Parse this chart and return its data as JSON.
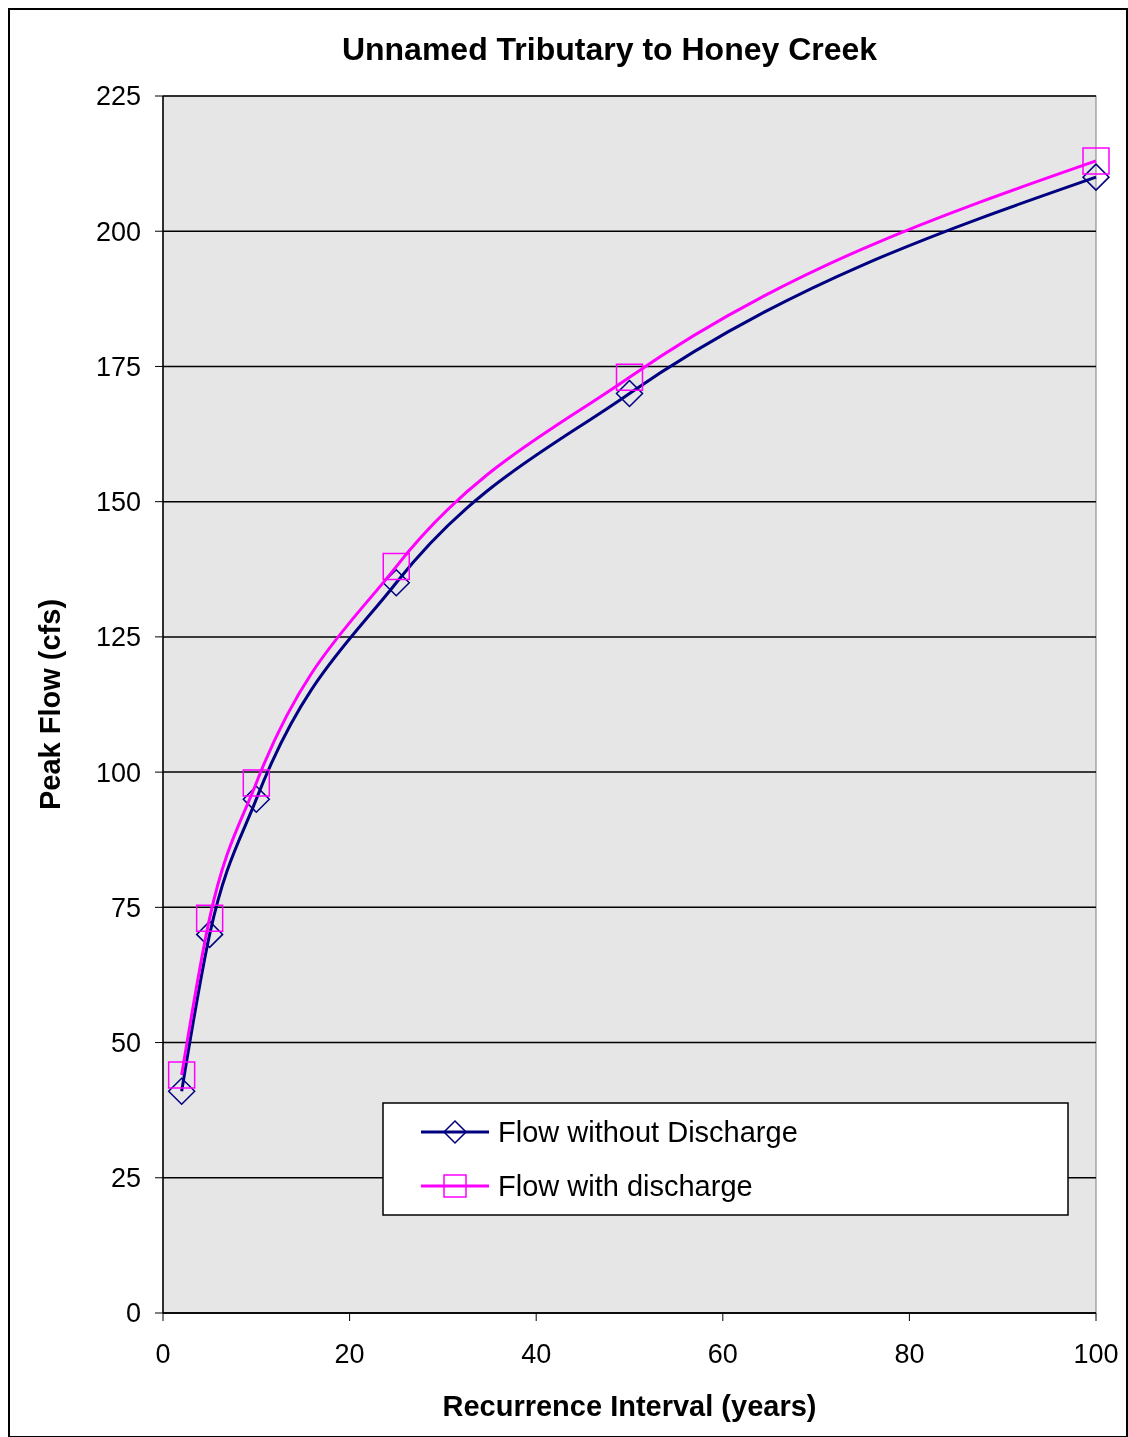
{
  "chart_data": {
    "type": "line",
    "title": "Unnamed Tributary to Honey Creek",
    "xlabel": "Recurrence Interval (years)",
    "ylabel": "Peak Flow (cfs)",
    "x": [
      2,
      5,
      10,
      25,
      50,
      100
    ],
    "series": [
      {
        "name": "Flow without Discharge",
        "color": "#000080",
        "marker": "diamond",
        "values": [
          41,
          70,
          95,
          135,
          170,
          210
        ]
      },
      {
        "name": "Flow with discharge",
        "color": "#ff00ff",
        "marker": "square",
        "values": [
          44,
          73,
          98,
          138,
          173,
          213
        ]
      }
    ],
    "xlim": [
      0,
      100
    ],
    "xticks": [
      0,
      20,
      40,
      60,
      80,
      100
    ],
    "ylim": [
      0,
      225
    ],
    "yticks": [
      0,
      25,
      50,
      75,
      100,
      125,
      150,
      175,
      200,
      225
    ],
    "grid": "y",
    "legend": "bottom right"
  }
}
